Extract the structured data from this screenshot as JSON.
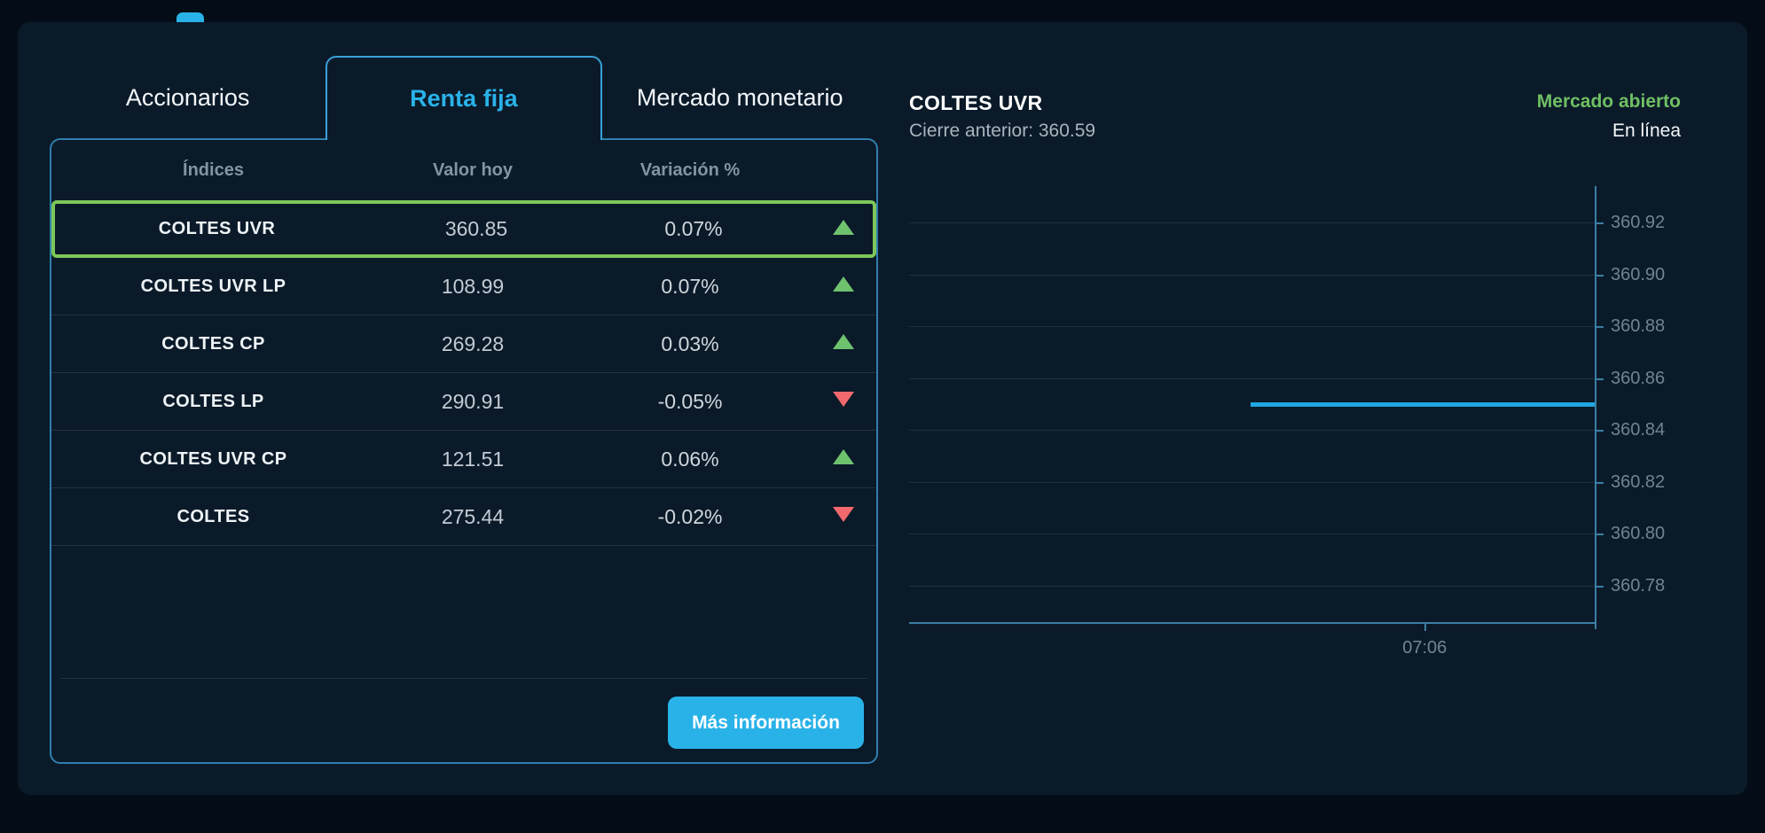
{
  "tabs": [
    {
      "label": "Accionarios",
      "active": false
    },
    {
      "label": "Renta fija",
      "active": true
    },
    {
      "label": "Mercado monetario",
      "active": false
    }
  ],
  "table": {
    "headers": {
      "indices": "Índices",
      "valor": "Valor hoy",
      "variacion": "Variación %"
    },
    "rows": [
      {
        "name": "COLTES UVR",
        "value": "360.85",
        "change": "0.07%",
        "direction": "up",
        "selected": true
      },
      {
        "name": "COLTES UVR LP",
        "value": "108.99",
        "change": "0.07%",
        "direction": "up",
        "selected": false
      },
      {
        "name": "COLTES CP",
        "value": "269.28",
        "change": "0.03%",
        "direction": "up",
        "selected": false
      },
      {
        "name": "COLTES LP",
        "value": "290.91",
        "change": "-0.05%",
        "direction": "down",
        "selected": false
      },
      {
        "name": "COLTES UVR CP",
        "value": "121.51",
        "change": "0.06%",
        "direction": "up",
        "selected": false
      },
      {
        "name": "COLTES",
        "value": "275.44",
        "change": "-0.02%",
        "direction": "down",
        "selected": false
      }
    ],
    "more_info_label": "Más información"
  },
  "detail": {
    "title": "COLTES UVR",
    "prev_close": "Cierre anterior: 360.59",
    "market_status": "Mercado abierto",
    "connection_status": "En línea"
  },
  "chart_data": {
    "type": "line",
    "title": "COLTES UVR intraday",
    "ylim": [
      360.766,
      360.934
    ],
    "y_ticks": [
      360.92,
      360.9,
      360.88,
      360.86,
      360.84,
      360.82,
      360.8,
      360.78
    ],
    "x_ticks": [
      {
        "label": "07:06",
        "frac": 0.752
      }
    ],
    "series": [
      {
        "name": "COLTES UVR",
        "value": 360.85,
        "start_frac": 0.498,
        "end_frac": 1.0,
        "color": "#1fa6e0"
      }
    ],
    "grid": true,
    "axis_side": "right"
  },
  "colors": {
    "accent": "#29b2e8",
    "positive": "#6ec26e",
    "negative": "#f2696d",
    "highlight_border": "#7dc75a",
    "open_status": "#6fbf63"
  }
}
